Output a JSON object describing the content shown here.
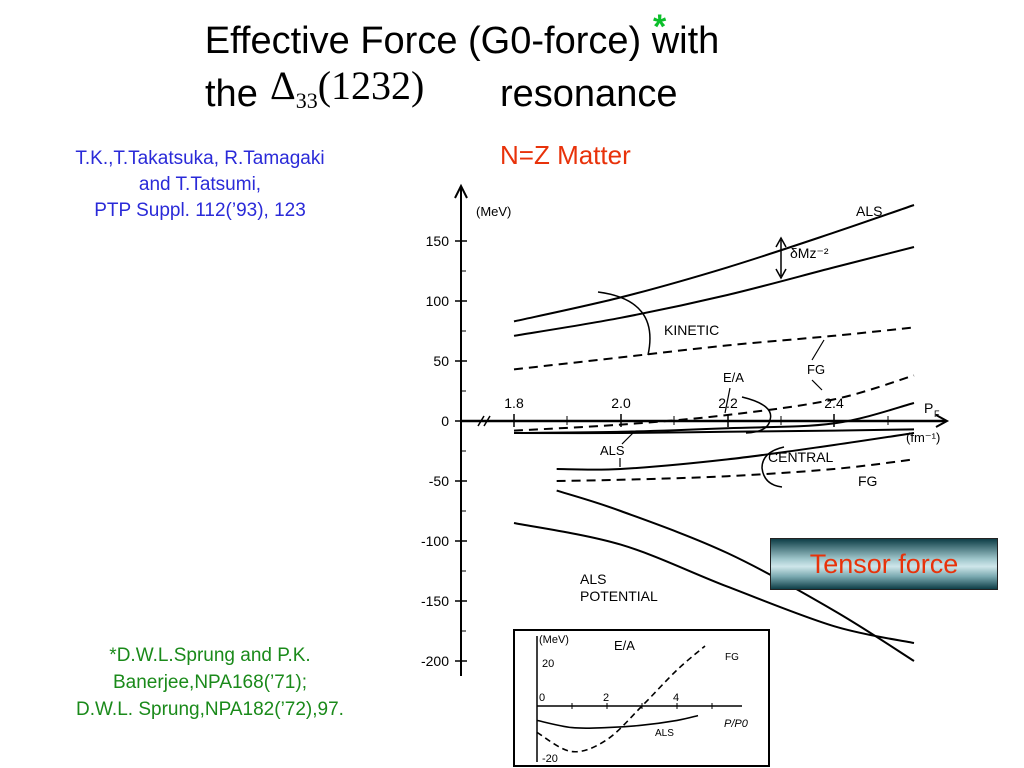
{
  "title": {
    "line1": "Effective Force (G0-force) with",
    "the": "the",
    "delta": "Δ",
    "delta_sub": "33",
    "delta_paren": "(1232)",
    "resonance": "resonance",
    "star": "*"
  },
  "reference_main": [
    "T.K.,T.Takatsuka, R.Tamagaki",
    "and T.Tatsumi,",
    "PTP Suppl. 112(’93), 123"
  ],
  "matter_label": "N=Z Matter",
  "tensor_box": "Tensor force",
  "reference_sprung": [
    "*D.W.L.Sprung and P.K.",
    "Banerjee,NPA168(’71);",
    "D.W.L. Sprung,NPA182(’72),97."
  ],
  "chart_data": [
    {
      "type": "line",
      "ylabel": "(MeV)",
      "xlabel": "PF",
      "xunit": "(fm⁻¹)",
      "xlim": [
        1.8,
        2.5
      ],
      "ylim": [
        -200,
        160
      ],
      "xticks": [
        "1.8",
        "2.0",
        "2.2",
        "2.4"
      ],
      "yticks": [
        "150",
        "100",
        "50",
        "0",
        "-50",
        "-100",
        "-150",
        "-200"
      ],
      "annotations": [
        "ALS",
        "δMz⁻²",
        "KINETIC",
        "FG",
        "E/A",
        "FG",
        "ALS",
        "CENTRAL",
        "FG",
        "ALS",
        "POTENTIAL"
      ],
      "series": [
        {
          "name": "ALS",
          "style": "solid",
          "x": [
            1.8,
            2.0,
            2.2,
            2.4,
            2.55
          ],
          "y": [
            83,
            103,
            128,
            157,
            180
          ]
        },
        {
          "name": "KINETIC",
          "style": "solid",
          "x": [
            1.8,
            2.0,
            2.2,
            2.4,
            2.55
          ],
          "y": [
            71,
            86,
            105,
            128,
            145
          ]
        },
        {
          "name": "FG",
          "style": "dashed",
          "x": [
            1.8,
            2.0,
            2.2,
            2.4,
            2.55
          ],
          "y": [
            43,
            53,
            63,
            71,
            78
          ]
        },
        {
          "name": "E/A",
          "style": "dashed",
          "x": [
            1.8,
            2.0,
            2.2,
            2.4,
            2.55
          ],
          "y": [
            -8,
            -3,
            5,
            18,
            38
          ]
        },
        {
          "name": "ALS",
          "style": "solid",
          "x": [
            1.8,
            2.0,
            2.2,
            2.4,
            2.55
          ],
          "y": [
            -10,
            -9,
            -6,
            -2,
            15
          ]
        },
        {
          "name": "ALS",
          "style": "solid",
          "x": [
            1.8,
            2.0,
            2.2,
            2.4,
            2.55
          ],
          "y": [
            -10,
            -10,
            -9,
            -8,
            -7
          ]
        },
        {
          "name": "CENTRAL",
          "style": "solid",
          "x": [
            1.88,
            2.0,
            2.2,
            2.4,
            2.55
          ],
          "y": [
            -40,
            -40,
            -32,
            -20,
            -10
          ]
        },
        {
          "name": "FG",
          "style": "dashed",
          "x": [
            1.88,
            2.0,
            2.2,
            2.4,
            2.55
          ],
          "y": [
            -50,
            -49,
            -46,
            -40,
            -32
          ]
        },
        {
          "name": "ALS POTENTIAL",
          "style": "solid",
          "x": [
            1.88,
            2.0,
            2.2,
            2.4,
            2.55
          ],
          "y": [
            -58,
            -75,
            -110,
            -158,
            -200
          ]
        },
        {
          "name": "ALS POTENTIAL",
          "style": "solid",
          "x": [
            1.8,
            2.0,
            2.2,
            2.4,
            2.55
          ],
          "y": [
            -85,
            -103,
            -138,
            -171,
            -185
          ]
        }
      ]
    },
    {
      "type": "line",
      "title": "E/A",
      "ylabel": "(MeV)",
      "xlabel": "P/P0",
      "xlim": [
        0,
        5
      ],
      "ylim": [
        -20,
        25
      ],
      "xticks": [
        "0",
        "2",
        "4"
      ],
      "yticks": [
        "20",
        "-20"
      ],
      "series": [
        {
          "name": "FG",
          "style": "dashed",
          "x": [
            0,
            1,
            2,
            3,
            4,
            4.8
          ],
          "y": [
            -11,
            -19,
            -14,
            0,
            15,
            25
          ]
        },
        {
          "name": "ALS",
          "style": "solid",
          "x": [
            0,
            1,
            2,
            3,
            4,
            4.6
          ],
          "y": [
            -6,
            -9,
            -9,
            -8,
            -6,
            -4
          ]
        }
      ]
    }
  ]
}
